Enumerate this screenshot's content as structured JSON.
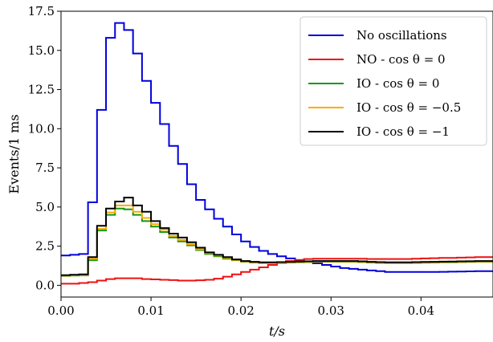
{
  "chart_data": {
    "type": "line",
    "step": true,
    "xlabel": "t/s",
    "ylabel": "Events/1 ms",
    "xlim": [
      0,
      0.048
    ],
    "ylim": [
      -0.75,
      17.5
    ],
    "xticks": [
      0,
      0.01,
      0.02,
      0.03,
      0.04
    ],
    "xtick_labels": [
      "0.00",
      "0.01",
      "0.02",
      "0.03",
      "0.04"
    ],
    "yticks": [
      0,
      2.5,
      5,
      7.5,
      10,
      12.5,
      15,
      17.5
    ],
    "ytick_labels": [
      "0.0",
      "2.5",
      "5.0",
      "7.5",
      "10.0",
      "12.5",
      "15.0",
      "17.5"
    ],
    "grid": false,
    "legend_position": "top-right",
    "x": [
      0,
      0.001,
      0.002,
      0.003,
      0.004,
      0.005,
      0.006,
      0.007,
      0.008,
      0.009,
      0.01,
      0.011,
      0.012,
      0.013,
      0.014,
      0.015,
      0.016,
      0.017,
      0.018,
      0.019,
      0.02,
      0.021,
      0.022,
      0.023,
      0.024,
      0.025,
      0.026,
      0.027,
      0.028,
      0.029,
      0.03,
      0.031,
      0.032,
      0.033,
      0.034,
      0.035,
      0.036,
      0.037,
      0.038,
      0.039,
      0.04,
      0.041,
      0.042,
      0.043,
      0.044,
      0.045,
      0.046,
      0.047,
      0.048
    ],
    "series": [
      {
        "name": "No oscillations",
        "color": "#0000dd",
        "values": [
          1.9,
          1.95,
          2.0,
          5.3,
          11.2,
          15.8,
          16.75,
          16.3,
          14.8,
          13.05,
          11.65,
          10.3,
          8.9,
          7.75,
          6.45,
          5.45,
          4.85,
          4.25,
          3.75,
          3.25,
          2.8,
          2.45,
          2.2,
          2.0,
          1.85,
          1.72,
          1.6,
          1.5,
          1.4,
          1.3,
          1.2,
          1.1,
          1.05,
          1.0,
          0.95,
          0.9,
          0.85,
          0.85,
          0.85,
          0.85,
          0.85,
          0.85,
          0.86,
          0.87,
          0.88,
          0.89,
          0.9,
          0.9,
          0.9
        ]
      },
      {
        "name": "NO - cos θ = 0",
        "color": "#ee1111",
        "values": [
          0.1,
          0.1,
          0.15,
          0.2,
          0.3,
          0.4,
          0.45,
          0.45,
          0.45,
          0.4,
          0.38,
          0.35,
          0.33,
          0.3,
          0.3,
          0.32,
          0.35,
          0.42,
          0.55,
          0.7,
          0.85,
          1.0,
          1.15,
          1.3,
          1.42,
          1.55,
          1.62,
          1.68,
          1.7,
          1.7,
          1.7,
          1.7,
          1.7,
          1.7,
          1.68,
          1.68,
          1.68,
          1.68,
          1.68,
          1.7,
          1.72,
          1.73,
          1.75,
          1.75,
          1.77,
          1.78,
          1.8,
          1.8,
          1.8
        ]
      },
      {
        "name": "IO - cos θ = 0",
        "color": "#119911",
        "values": [
          0.6,
          0.62,
          0.63,
          1.6,
          3.5,
          4.5,
          4.9,
          4.85,
          4.5,
          4.1,
          3.75,
          3.4,
          3.05,
          2.8,
          2.55,
          2.25,
          2.0,
          1.85,
          1.7,
          1.6,
          1.5,
          1.45,
          1.42,
          1.42,
          1.43,
          1.45,
          1.47,
          1.48,
          1.5,
          1.5,
          1.5,
          1.5,
          1.5,
          1.48,
          1.45,
          1.43,
          1.42,
          1.42,
          1.42,
          1.43,
          1.44,
          1.45,
          1.46,
          1.47,
          1.48,
          1.49,
          1.5,
          1.5,
          1.5
        ]
      },
      {
        "name": "IO - cos θ = −0.5",
        "color": "#ffaa00",
        "values": [
          0.62,
          0.64,
          0.65,
          1.7,
          3.6,
          4.65,
          5.1,
          5.1,
          4.7,
          4.3,
          3.9,
          3.55,
          3.15,
          2.9,
          2.62,
          2.3,
          2.05,
          1.9,
          1.75,
          1.62,
          1.52,
          1.47,
          1.44,
          1.44,
          1.45,
          1.47,
          1.49,
          1.5,
          1.52,
          1.52,
          1.52,
          1.52,
          1.52,
          1.5,
          1.47,
          1.45,
          1.44,
          1.44,
          1.44,
          1.45,
          1.46,
          1.47,
          1.48,
          1.49,
          1.5,
          1.51,
          1.52,
          1.52,
          1.52
        ]
      },
      {
        "name": "IO - cos θ = −1",
        "color": "#000000",
        "values": [
          0.65,
          0.67,
          0.7,
          1.8,
          3.8,
          4.9,
          5.35,
          5.6,
          5.1,
          4.7,
          4.1,
          3.65,
          3.3,
          3.05,
          2.75,
          2.4,
          2.1,
          1.95,
          1.8,
          1.65,
          1.55,
          1.5,
          1.47,
          1.47,
          1.48,
          1.5,
          1.52,
          1.53,
          1.55,
          1.55,
          1.55,
          1.55,
          1.55,
          1.53,
          1.5,
          1.48,
          1.47,
          1.47,
          1.47,
          1.48,
          1.49,
          1.5,
          1.51,
          1.52,
          1.53,
          1.54,
          1.55,
          1.55,
          1.55
        ]
      }
    ]
  }
}
